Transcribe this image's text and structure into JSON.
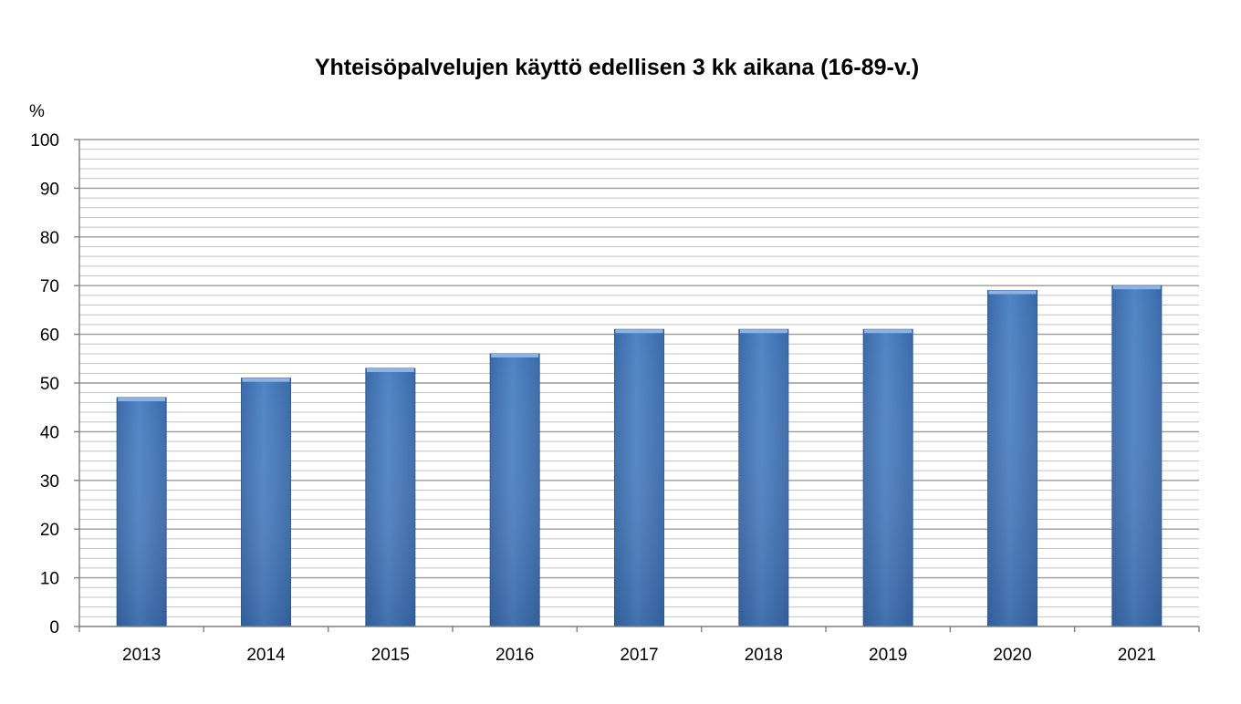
{
  "chart_data": {
    "type": "bar",
    "title": "Yhteisöpalvelujen käyttö edellisen 3 kk aikana (16-89-v.)",
    "ylabel": "%",
    "xlabel": "",
    "categories": [
      "2013",
      "2014",
      "2015",
      "2016",
      "2017",
      "2018",
      "2019",
      "2020",
      "2021"
    ],
    "values": [
      47,
      51,
      53,
      56,
      61,
      61,
      61,
      69,
      70
    ],
    "ylim": [
      0,
      100
    ],
    "yticks": [
      0,
      10,
      20,
      30,
      40,
      50,
      60,
      70,
      80,
      90,
      100
    ],
    "minor_grid_step": 2,
    "grid": true,
    "legend": "none",
    "bar_color": "#4a7ebb"
  }
}
